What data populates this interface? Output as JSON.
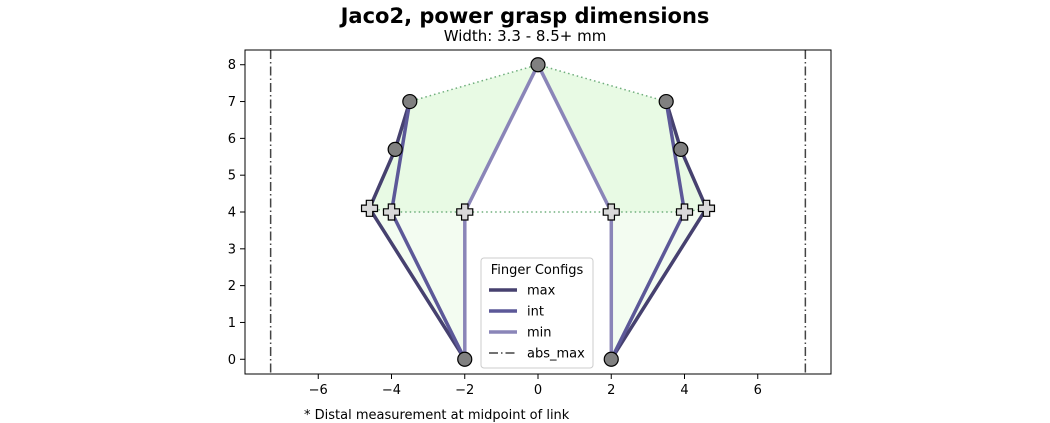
{
  "figure": {
    "title": "Jaco2, power grasp dimensions",
    "subtitle": "Width: 3.3 - 8.5+ mm",
    "footnote": "* Distal measurement at midpoint of link"
  },
  "chart_data": {
    "type": "line",
    "title": "Jaco2, power grasp dimensions",
    "subtitle": "Width: 3.3 - 8.5+ mm",
    "xlabel": "",
    "ylabel": "",
    "xlim": [
      -8,
      8
    ],
    "ylim": [
      -0.4,
      8.4
    ],
    "xticks": [
      -6,
      -4,
      -2,
      0,
      2,
      4,
      6
    ],
    "yticks": [
      0,
      1,
      2,
      3,
      4,
      5,
      6,
      7,
      8
    ],
    "grid": false,
    "legend": {
      "title": "Finger Configs",
      "placement": "lower center",
      "entries": [
        {
          "label": "max",
          "color": "#46416f",
          "style": "solid"
        },
        {
          "label": "int",
          "color": "#5c5898",
          "style": "solid"
        },
        {
          "label": "min",
          "color": "#8a85b8",
          "style": "solid"
        },
        {
          "label": "abs_max",
          "color": "#444444",
          "style": "dashdot"
        }
      ]
    },
    "series": [
      {
        "name": "max",
        "color": "#46416f",
        "x": [
          -2,
          -4.6,
          -3.9,
          -3.5
        ],
        "y": [
          0,
          4.1,
          5.7,
          7.0
        ],
        "x_mirror": [
          2,
          4.6,
          3.9,
          3.5
        ],
        "y_mirror": [
          0,
          4.1,
          5.7,
          7.0
        ]
      },
      {
        "name": "int",
        "color": "#5c5898",
        "x": [
          -2,
          -4.0,
          -3.5
        ],
        "y": [
          0,
          4.0,
          7.0
        ],
        "x_mirror": [
          2,
          4.0,
          3.5
        ],
        "y_mirror": [
          0,
          4.0,
          7.0
        ]
      },
      {
        "name": "min",
        "color": "#8a85b8",
        "x": [
          -2,
          -2,
          0
        ],
        "y": [
          0,
          4.0,
          8.0
        ],
        "x_mirror": [
          2,
          2,
          0
        ],
        "y_mirror": [
          0,
          4.0,
          8.0
        ]
      },
      {
        "name": "abs_max",
        "color": "#444444",
        "x": [
          -7.3,
          7.3
        ]
      }
    ],
    "envelope": {
      "dotted_color": "#6fae7c",
      "upper_fill": "#e8fae4",
      "lower_fill": "#f3fcf1",
      "top_outline": [
        [
          -4.6,
          4.1
        ],
        [
          -3.9,
          5.7
        ],
        [
          -3.5,
          7.0
        ],
        [
          0,
          8.0
        ],
        [
          3.5,
          7.0
        ],
        [
          3.9,
          5.7
        ],
        [
          4.6,
          4.1
        ]
      ],
      "mid_line": [
        [
          -4.6,
          4.1
        ],
        [
          -4.0,
          4.0
        ],
        [
          4.0,
          4.0
        ],
        [
          4.6,
          4.1
        ]
      ]
    },
    "markers": {
      "joints_color": "#808080",
      "joints": [
        [
          -2,
          0
        ],
        [
          2,
          0
        ],
        [
          0,
          8.0
        ],
        [
          -3.5,
          7.0
        ],
        [
          3.5,
          7.0
        ],
        [
          -3.9,
          5.7
        ],
        [
          3.9,
          5.7
        ]
      ],
      "midpoint_color": "#d9d9d9",
      "midpoints": [
        [
          -4.6,
          4.1
        ],
        [
          -4.0,
          4.0
        ],
        [
          -2,
          4.0
        ],
        [
          2,
          4.0
        ],
        [
          4.0,
          4.0
        ],
        [
          4.6,
          4.1
        ]
      ]
    }
  }
}
